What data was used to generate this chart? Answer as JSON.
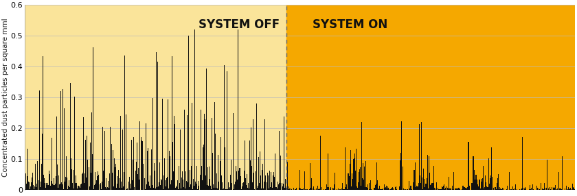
{
  "ylabel": "Concentrated dust particles per square mml",
  "ylim": [
    0,
    0.6
  ],
  "yticks": [
    0,
    0.1,
    0.2,
    0.3,
    0.4,
    0.5,
    0.6
  ],
  "bg_color_off": "#FAE49A",
  "bg_color_on": "#F5A800",
  "bar_color": "#111111",
  "label_off": "SYSTEM OFF",
  "label_on": "SYSTEM ON",
  "label_fontsize": 12,
  "label_color": "#111111",
  "ylabel_fontsize": 7.5,
  "n_total": 800,
  "n_off": 380,
  "seed": 7
}
